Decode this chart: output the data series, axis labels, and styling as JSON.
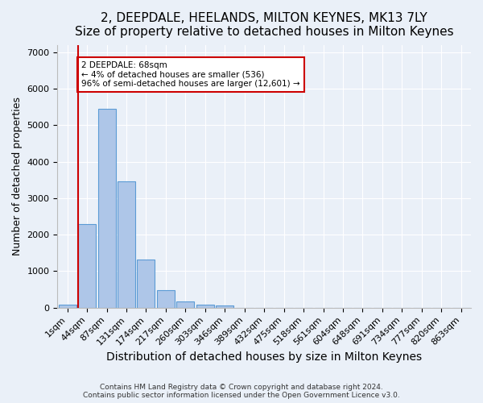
{
  "title": "2, DEEPDALE, HEELANDS, MILTON KEYNES, MK13 7LY",
  "subtitle": "Size of property relative to detached houses in Milton Keynes",
  "xlabel": "Distribution of detached houses by size in Milton Keynes",
  "ylabel": "Number of detached properties",
  "footnote": "Contains HM Land Registry data © Crown copyright and database right 2024.\nContains public sector information licensed under the Open Government Licence v3.0.",
  "bar_values": [
    80,
    2280,
    5450,
    3450,
    1310,
    470,
    160,
    90,
    55,
    0,
    0,
    0,
    0,
    0,
    0,
    0,
    0,
    0,
    0,
    0,
    0
  ],
  "bar_labels": [
    "1sqm",
    "44sqm",
    "87sqm",
    "131sqm",
    "174sqm",
    "217sqm",
    "260sqm",
    "303sqm",
    "346sqm",
    "389sqm",
    "432sqm",
    "475sqm",
    "518sqm",
    "561sqm",
    "604sqm",
    "648sqm",
    "691sqm",
    "734sqm",
    "777sqm",
    "820sqm",
    "863sqm"
  ],
  "bar_color": "#aec6e8",
  "bar_edge_color": "#5b9bd5",
  "annotation_box_text": "2 DEEPDALE: 68sqm\n← 4% of detached houses are smaller (536)\n96% of semi-detached houses are larger (12,601) →",
  "vline_bar_index": 1,
  "vline_color": "#cc0000",
  "annotation_box_color": "#ffffff",
  "annotation_box_edge_color": "#cc0000",
  "ylim": [
    0,
    7200
  ],
  "yticks": [
    0,
    1000,
    2000,
    3000,
    4000,
    5000,
    6000,
    7000
  ],
  "bg_color": "#eaf0f8",
  "axes_bg_color": "#eaf0f8",
  "grid_color": "#ffffff",
  "title_fontsize": 11,
  "subtitle_fontsize": 10,
  "xlabel_fontsize": 10,
  "ylabel_fontsize": 9,
  "tick_fontsize": 8
}
